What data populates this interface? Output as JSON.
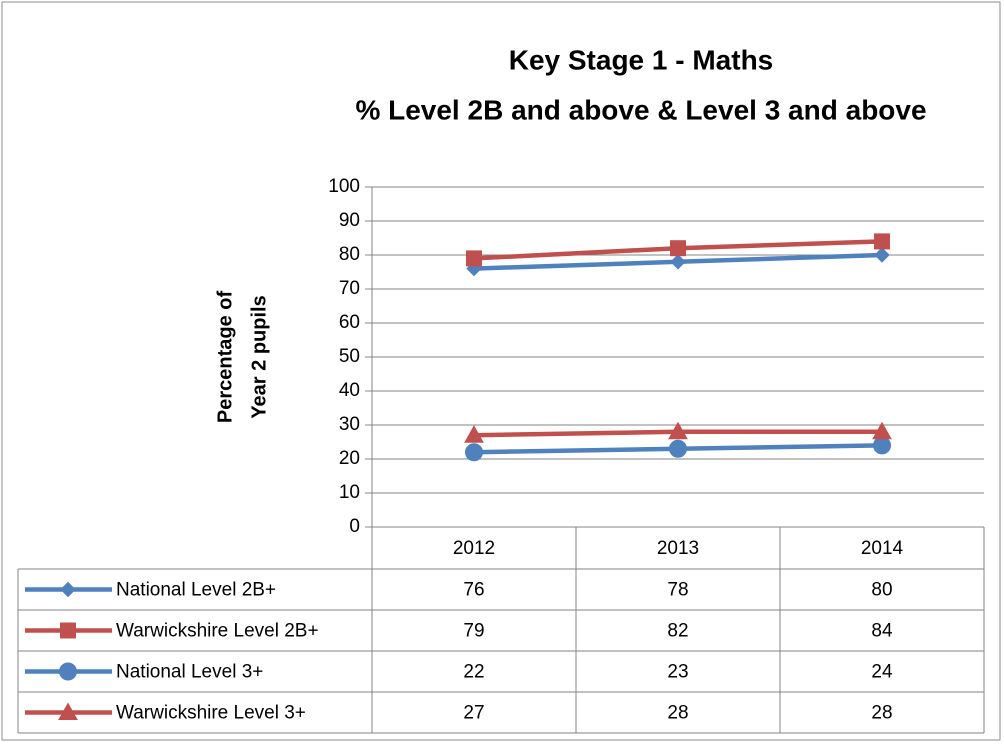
{
  "chart_data": {
    "type": "line",
    "title": [
      "Key Stage 1 - Maths",
      "% Level 2B and above & Level 3 and above"
    ],
    "ylabel": [
      "Percentage of",
      "Year 2 pupils"
    ],
    "categories": [
      "2012",
      "2013",
      "2014"
    ],
    "series": [
      {
        "name": "National Level 2B+",
        "color": "#4f81bd",
        "marker": "diamond",
        "values": [
          76,
          78,
          80
        ]
      },
      {
        "name": "Warwickshire Level 2B+",
        "color": "#c0504d",
        "marker": "square",
        "values": [
          79,
          82,
          84
        ]
      },
      {
        "name": "National Level 3+",
        "color": "#4f81bd",
        "marker": "circle",
        "values": [
          22,
          23,
          24
        ]
      },
      {
        "name": "Warwickshire Level 3+",
        "color": "#c0504d",
        "marker": "triangle",
        "values": [
          27,
          28,
          28
        ]
      }
    ],
    "ylim": [
      0,
      100
    ],
    "yticks": [
      0,
      10,
      20,
      30,
      40,
      50,
      60,
      70,
      80,
      90,
      100
    ],
    "grid": true,
    "data_table": true
  }
}
